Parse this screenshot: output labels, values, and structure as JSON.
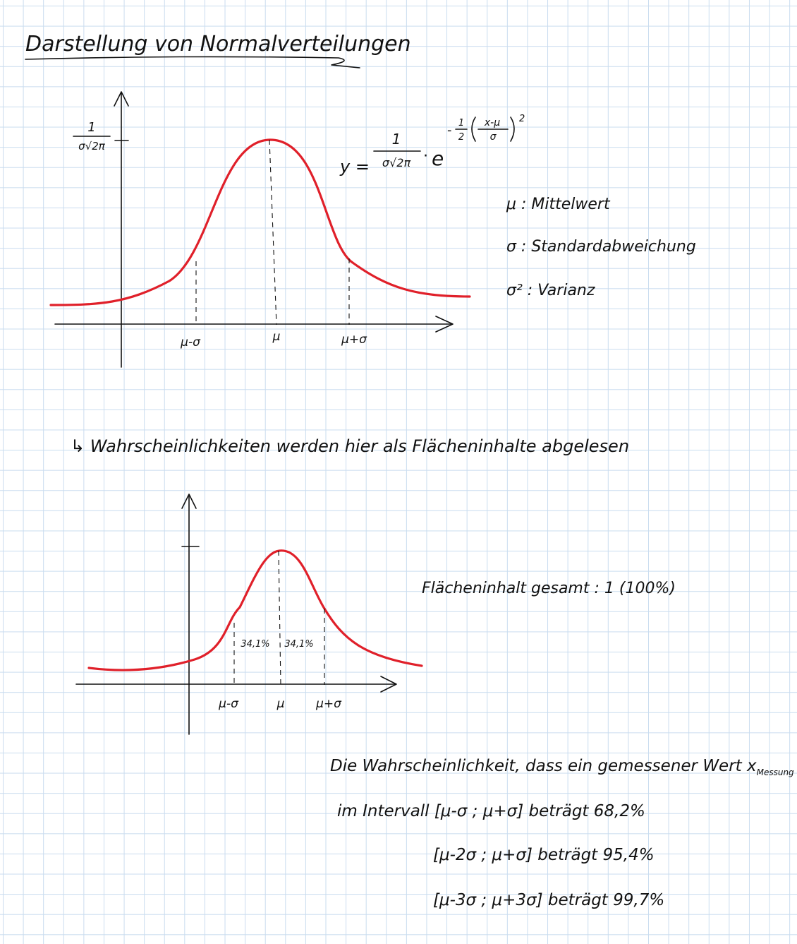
{
  "title": "Darstellung von Normalverteilungen",
  "graph1": {
    "y_tick_num": "1",
    "y_tick_den": "σ√2π",
    "x_labels": [
      "μ-σ",
      "μ",
      "μ+σ"
    ]
  },
  "formula": {
    "lhs": "y =",
    "frac_num": "1",
    "frac_den": "σ√2π",
    "dot": "·",
    "base": "e",
    "exp_sign": "-",
    "exp_half_num": "1",
    "exp_half_den": "2",
    "exp_inner_num": "x-μ",
    "exp_inner_den": "σ",
    "exp_power": "2"
  },
  "legend": [
    "μ : Mittelwert",
    "σ : Standardabweichung",
    "σ² : Varianz"
  ],
  "note": "↳ Wahrscheinlichkeiten werden hier als Flächeninhalte abgelesen",
  "graph2": {
    "area_labels": [
      "34,1%",
      "34,1%"
    ],
    "x_labels": [
      "μ-σ",
      "μ",
      "μ+σ"
    ]
  },
  "total_area": "Flächeninhalt gesamt : 1 (100%)",
  "prob": {
    "line1_text": "Die Wahrscheinlichkeit, dass ein gemessener Wert x",
    "line1_sub": "Messung",
    "line2": "im Intervall [μ-σ ; μ+σ] beträgt 68,2%",
    "line3": "[μ-2σ ; μ+σ] beträgt 95,4%",
    "line4": "[μ-3σ ; μ+3σ] beträgt 99,7%"
  }
}
